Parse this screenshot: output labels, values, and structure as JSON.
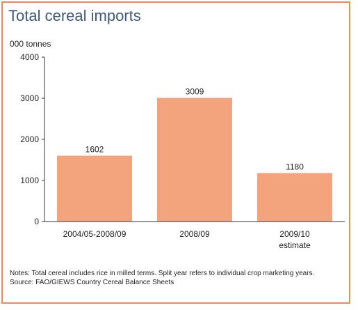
{
  "chart_data": {
    "type": "bar",
    "title": "Total cereal imports",
    "ylabel": "000 tonnes",
    "xlabel": "",
    "categories": [
      [
        "2004/05-2008/09"
      ],
      [
        "2008/09"
      ],
      [
        "2009/10",
        "estimate"
      ]
    ],
    "values": [
      1602,
      3009,
      1180
    ],
    "data_labels": [
      "1602",
      "3009",
      "1180"
    ],
    "ylim": [
      0,
      4000
    ],
    "yticks": [
      0,
      1000,
      2000,
      3000,
      4000
    ],
    "ytick_labels": [
      "0",
      "1000",
      "2000",
      "3000",
      "4000"
    ],
    "grid": false,
    "legend": "none",
    "bar_color": "#f4a47c",
    "axis_color": "#333333"
  },
  "notes": {
    "note": "Notes: Total cereal includes rice in milled terms. Split year refers to individual crop marketing years.",
    "source": "Source: FAO/GIEWS Country Cereal Balance Sheets"
  },
  "colors": {
    "border": "#f08a50",
    "title": "#3d5a7a"
  }
}
